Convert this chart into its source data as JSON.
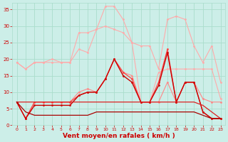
{
  "x": [
    0,
    1,
    2,
    3,
    4,
    5,
    6,
    7,
    8,
    9,
    10,
    11,
    12,
    13,
    14,
    15,
    16,
    17,
    18,
    19,
    20,
    21,
    22,
    23
  ],
  "series": [
    {
      "color": "#ffaaaa",
      "linewidth": 0.8,
      "markersize": 2,
      "values": [
        19,
        17,
        19,
        19,
        20,
        19,
        19,
        23,
        22,
        29,
        30,
        29,
        28,
        25,
        24,
        24,
        17,
        32,
        33,
        32,
        24,
        19,
        24,
        13
      ]
    },
    {
      "color": "#ffaaaa",
      "linewidth": 0.8,
      "markersize": 2,
      "values": [
        19,
        17,
        19,
        19,
        19,
        19,
        19,
        28,
        28,
        29,
        36,
        36,
        32,
        25,
        7,
        7,
        16,
        17,
        17,
        17,
        17,
        17,
        17,
        8
      ]
    },
    {
      "color": "#ff8888",
      "linewidth": 0.8,
      "markersize": 2,
      "values": [
        7,
        2,
        7,
        7,
        7,
        7,
        7,
        10,
        11,
        10,
        14,
        20,
        16,
        15,
        7,
        7,
        7,
        13,
        7,
        13,
        13,
        8,
        7,
        7
      ]
    },
    {
      "color": "#ff4444",
      "linewidth": 0.9,
      "markersize": 2,
      "values": [
        7,
        2,
        7,
        7,
        7,
        7,
        7,
        9,
        10,
        10,
        14,
        20,
        16,
        14,
        7,
        7,
        13,
        23,
        7,
        13,
        13,
        4,
        2,
        2
      ]
    },
    {
      "color": "#cc0000",
      "linewidth": 1.0,
      "markersize": 2,
      "values": [
        7,
        2,
        6,
        6,
        6,
        6,
        6,
        9,
        10,
        10,
        14,
        20,
        15,
        13,
        7,
        7,
        12,
        22,
        7,
        13,
        13,
        4,
        2,
        2
      ]
    },
    {
      "color": "#dd2222",
      "linewidth": 0.9,
      "markersize": 0,
      "values": [
        7,
        7,
        7,
        7,
        7,
        7,
        7,
        7,
        7,
        7,
        7,
        7,
        7,
        7,
        7,
        7,
        7,
        7,
        7,
        7,
        7,
        6,
        4,
        2
      ]
    },
    {
      "color": "#aa0000",
      "linewidth": 0.9,
      "markersize": 0,
      "values": [
        7,
        4,
        3,
        3,
        3,
        3,
        3,
        3,
        3,
        4,
        4,
        4,
        4,
        4,
        4,
        4,
        4,
        4,
        4,
        4,
        4,
        3,
        2,
        2
      ]
    }
  ],
  "xlabel": "Vent moyen/en rafales ( km/h )",
  "ylim": [
    0,
    37
  ],
  "xlim": [
    -0.5,
    23.5
  ],
  "yticks": [
    0,
    5,
    10,
    15,
    20,
    25,
    30,
    35
  ],
  "xticks": [
    0,
    1,
    2,
    3,
    4,
    5,
    6,
    7,
    8,
    9,
    10,
    11,
    12,
    13,
    14,
    15,
    16,
    17,
    18,
    19,
    20,
    21,
    22,
    23
  ],
  "bg_color": "#cceee8",
  "grid_color": "#aaddcc",
  "label_color": "#cc0000",
  "tick_color": "#cc0000"
}
